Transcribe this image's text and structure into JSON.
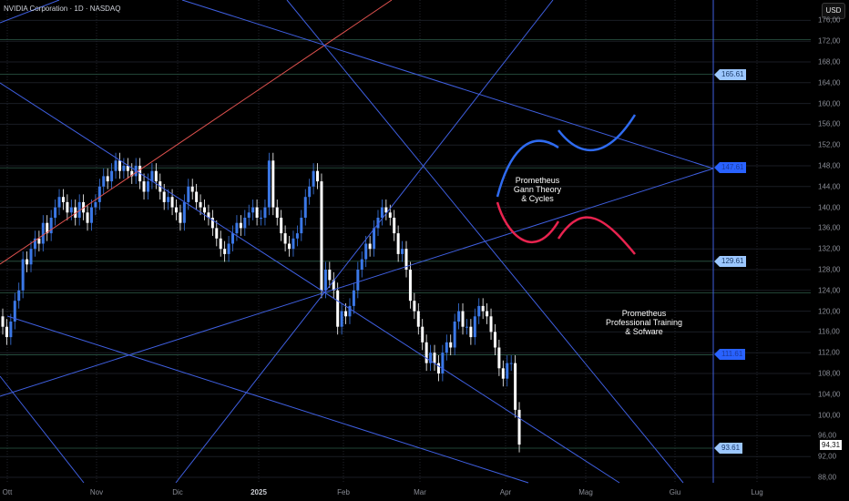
{
  "header": {
    "title": "NVIDIA Corporation · 1D · NASDAQ",
    "currency_button": "USD"
  },
  "price_axis": {
    "ticks": [
      "176,00",
      "172,00",
      "168,00",
      "164,00",
      "160,00",
      "156,00",
      "152,00",
      "148,00",
      "144,00",
      "140,00",
      "136,00",
      "132,00",
      "128,00",
      "124,00",
      "120,00",
      "116,00",
      "112,00",
      "108,00",
      "104,00",
      "100,00",
      "96,00",
      "92,00",
      "88,00"
    ],
    "last_price": "94,31"
  },
  "time_axis": {
    "ticks": [
      "Ott",
      "Nov",
      "Dic",
      "2025",
      "Feb",
      "Mar",
      "Apr",
      "Mag",
      "Giu",
      "Lug"
    ]
  },
  "levels": [
    {
      "label": "165.61",
      "value": 165.61,
      "strong": false
    },
    {
      "label": "147.61",
      "value": 147.61,
      "strong": true
    },
    {
      "label": "129.61",
      "value": 129.61,
      "strong": false
    },
    {
      "label": "111.61",
      "value": 111.61,
      "strong": true
    },
    {
      "label": "93.61",
      "value": 93.61,
      "strong": false
    }
  ],
  "annotations": {
    "gann": [
      "Prometheus",
      "Gann Theory",
      "& Cycles"
    ],
    "training": [
      "Prometheus",
      "Professional Training",
      "& Sofware"
    ]
  },
  "colors": {
    "up": "#3b78e7",
    "down": "#ffffff",
    "gann_line": "#3f5fe0",
    "red_line": "#e0524f",
    "curve_blue": "#2f6bf0",
    "curve_red": "#e8234f",
    "grid": "#1a1d24"
  },
  "chart_data": {
    "type": "candlestick",
    "ylim": [
      88,
      176
    ],
    "close": [
      117,
      115,
      118,
      122,
      124,
      130,
      129,
      132,
      134,
      133,
      137,
      135,
      138,
      140,
      142,
      141,
      139,
      140,
      138,
      141,
      139,
      137,
      140,
      141,
      144,
      146,
      145,
      147,
      149,
      147,
      148,
      147,
      146,
      148,
      145,
      143,
      145,
      147,
      145,
      143,
      141,
      142,
      140,
      139,
      137,
      141,
      144,
      143,
      141,
      140,
      139,
      138,
      136,
      134,
      132,
      131,
      133,
      135,
      137,
      136,
      138,
      139,
      140,
      138,
      138,
      140,
      149,
      140,
      138,
      135,
      133,
      132,
      134,
      135,
      138,
      142,
      144,
      147,
      145,
      124,
      128,
      126,
      124,
      117,
      120,
      119,
      121,
      124,
      128,
      130,
      133,
      132,
      136,
      138,
      140,
      139,
      138,
      135,
      131,
      132,
      128,
      122,
      120,
      117,
      114,
      110,
      112,
      110,
      108,
      112,
      114,
      113,
      118,
      120,
      117,
      117,
      115,
      119,
      121,
      120,
      119,
      116,
      113,
      109,
      107,
      110,
      110,
      101,
      94.31
    ]
  }
}
